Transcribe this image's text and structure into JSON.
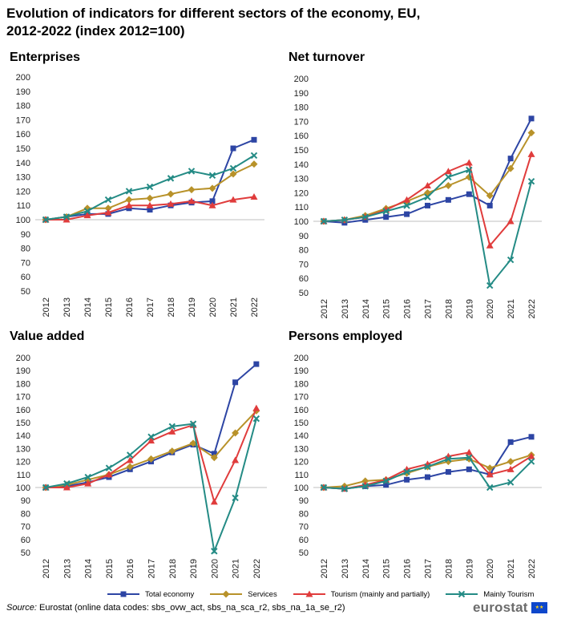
{
  "title": "Evolution of indicators for different sectors of the economy, EU, 2012-2022 (index 2012=100)",
  "legend": {
    "series_names": [
      "Total economy",
      "Services",
      "Tourism (mainly and partially)",
      "Mainly Tourism"
    ]
  },
  "colors": {
    "total": "#2d45a4",
    "services": "#b8922a",
    "tourism": "#e03c3c",
    "mainly": "#248b85"
  },
  "source": {
    "label": "Source:",
    "text": "Eurostat (online data codes: sbs_ovw_act, sbs_na_sca_r2, sbs_na_1a_se_r2)"
  },
  "logo": {
    "text": "eurostat"
  },
  "chart_data": [
    {
      "type": "line",
      "title": "Enterprises",
      "categories": [
        "2012",
        "2013",
        "2014",
        "2015",
        "2016",
        "2017",
        "2018",
        "2019",
        "2020",
        "2021",
        "2022"
      ],
      "ylim": [
        50,
        200
      ],
      "yticks": [
        50,
        60,
        70,
        80,
        90,
        100,
        110,
        120,
        130,
        140,
        150,
        160,
        170,
        180,
        190,
        200
      ],
      "series": [
        {
          "name": "Total economy",
          "values": [
            100,
            102,
            104,
            104,
            108,
            107,
            110,
            112,
            113,
            150,
            156
          ]
        },
        {
          "name": "Services",
          "values": [
            100,
            102,
            108,
            108,
            114,
            115,
            118,
            121,
            122,
            132,
            139
          ]
        },
        {
          "name": "Tourism (mainly and partially)",
          "values": [
            100,
            100,
            103,
            105,
            110,
            110,
            111,
            113,
            110,
            114,
            116
          ]
        },
        {
          "name": "Mainly Tourism",
          "values": [
            100,
            102,
            106,
            114,
            120,
            123,
            129,
            134,
            131,
            136,
            145
          ]
        }
      ]
    },
    {
      "type": "line",
      "title": "Net turnover",
      "categories": [
        "2012",
        "2013",
        "2014",
        "2015",
        "2016",
        "2017",
        "2018",
        "2019",
        "2020",
        "2021",
        "2022"
      ],
      "ylim": [
        50,
        200
      ],
      "yticks": [
        50,
        60,
        70,
        80,
        90,
        100,
        110,
        120,
        130,
        140,
        150,
        160,
        170,
        180,
        190,
        200
      ],
      "series": [
        {
          "name": "Total economy",
          "values": [
            100,
            99,
            101,
            103,
            105,
            111,
            115,
            119,
            111,
            144,
            172
          ]
        },
        {
          "name": "Services",
          "values": [
            100,
            101,
            104,
            109,
            114,
            120,
            125,
            131,
            118,
            137,
            162
          ]
        },
        {
          "name": "Tourism (mainly and partially)",
          "values": [
            100,
            101,
            103,
            108,
            115,
            125,
            135,
            141,
            83,
            100,
            147
          ]
        },
        {
          "name": "Mainly Tourism",
          "values": [
            100,
            101,
            103,
            107,
            111,
            117,
            131,
            136,
            55,
            73,
            128
          ]
        }
      ]
    },
    {
      "type": "line",
      "title": "Value added",
      "categories": [
        "2012",
        "2013",
        "2014",
        "2015",
        "2016",
        "2017",
        "2018",
        "2019",
        "2020",
        "2021",
        "2022"
      ],
      "ylim": [
        50,
        200
      ],
      "yticks": [
        50,
        60,
        70,
        80,
        90,
        100,
        110,
        120,
        130,
        140,
        150,
        160,
        170,
        180,
        190,
        200
      ],
      "series": [
        {
          "name": "Total economy",
          "values": [
            100,
            101,
            104,
            108,
            114,
            120,
            127,
            133,
            126,
            181,
            195
          ]
        },
        {
          "name": "Services",
          "values": [
            100,
            102,
            106,
            110,
            116,
            122,
            128,
            134,
            123,
            142,
            159
          ]
        },
        {
          "name": "Tourism (mainly and partially)",
          "values": [
            100,
            100,
            103,
            110,
            121,
            136,
            143,
            148,
            89,
            121,
            161
          ]
        },
        {
          "name": "Mainly Tourism",
          "values": [
            100,
            103,
            108,
            115,
            125,
            139,
            147,
            149,
            51,
            92,
            153
          ]
        }
      ]
    },
    {
      "type": "line",
      "title": "Persons employed",
      "categories": [
        "2012",
        "2013",
        "2014",
        "2015",
        "2016",
        "2017",
        "2018",
        "2019",
        "2020",
        "2021",
        "2022"
      ],
      "ylim": [
        50,
        200
      ],
      "yticks": [
        50,
        60,
        70,
        80,
        90,
        100,
        110,
        120,
        130,
        140,
        150,
        160,
        170,
        180,
        190,
        200
      ],
      "series": [
        {
          "name": "Total economy",
          "values": [
            100,
            99,
            101,
            102,
            106,
            108,
            112,
            114,
            110,
            135,
            139
          ]
        },
        {
          "name": "Services",
          "values": [
            100,
            101,
            105,
            106,
            111,
            116,
            120,
            122,
            115,
            120,
            125
          ]
        },
        {
          "name": "Tourism (mainly and partially)",
          "values": [
            100,
            99,
            102,
            106,
            114,
            118,
            124,
            127,
            110,
            114,
            124
          ]
        },
        {
          "name": "Mainly Tourism",
          "values": [
            100,
            99,
            101,
            105,
            112,
            116,
            122,
            123,
            100,
            104,
            120
          ]
        }
      ]
    }
  ]
}
